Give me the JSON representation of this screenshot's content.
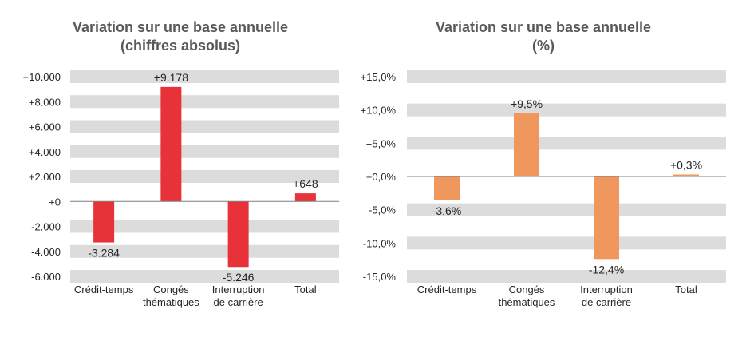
{
  "chart_data": [
    {
      "type": "bar",
      "title_lines": [
        "Variation sur une base annuelle",
        "(chiffres absolus)"
      ],
      "categories": [
        [
          "Crédit-temps"
        ],
        [
          "Congés",
          "thématiques"
        ],
        [
          "Interruption",
          "de carrière"
        ],
        [
          "Total"
        ]
      ],
      "values": [
        -3284,
        9178,
        -5246,
        648
      ],
      "data_labels": [
        "-3.284",
        "+9.178",
        "-5.246",
        "+648"
      ],
      "ylim": [
        -6000,
        10000
      ],
      "yticks": [
        10000,
        8000,
        6000,
        4000,
        2000,
        0,
        -2000,
        -4000,
        -6000
      ],
      "ytick_labels": [
        "+10.000",
        "+8.000",
        "+6.000",
        "+4.000",
        "+2.000",
        "+0",
        "-2.000",
        "-4.000",
        "-6.000"
      ],
      "bar_color": "#e8323a",
      "grid_bands": true
    },
    {
      "type": "bar",
      "title_lines": [
        "Variation sur une base annuelle",
        "(%)"
      ],
      "categories": [
        [
          "Crédit-temps"
        ],
        [
          "Congés",
          "thématiques"
        ],
        [
          "Interruption",
          "de carrière"
        ],
        [
          "Total"
        ]
      ],
      "values": [
        -3.6,
        9.5,
        -12.4,
        0.3
      ],
      "data_labels": [
        "-3,6%",
        "+9,5%",
        "-12,4%",
        "+0,3%"
      ],
      "ylim": [
        -15,
        15
      ],
      "yticks": [
        15,
        10,
        5,
        0,
        -5,
        -10,
        -15
      ],
      "ytick_labels": [
        "+15,0%",
        "+10,0%",
        "+5,0%",
        "+0,0%",
        "-5,0%",
        "-10,0%",
        "-15,0%"
      ],
      "bar_color": "#f0975d",
      "grid_bands": true
    }
  ]
}
